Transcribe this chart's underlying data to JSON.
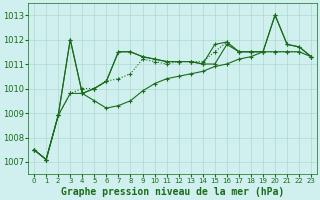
{
  "title": "Graphe pression niveau de la mer (hPa)",
  "background_color": "#cff0ee",
  "grid_color": "#b0d8cc",
  "line_color": "#1a6b1a",
  "series": [
    [
      1007.5,
      1007.1,
      1008.9,
      1012.0,
      1009.8,
      1010.0,
      1010.3,
      1011.5,
      1011.5,
      1011.3,
      1011.2,
      1011.1,
      1011.1,
      1011.1,
      1011.0,
      1011.0,
      1011.8,
      1011.5,
      1011.5,
      1011.5,
      1013.0,
      1011.8,
      1011.7,
      1011.3
    ],
    [
      1007.5,
      1007.1,
      1008.9,
      1012.0,
      1009.8,
      1010.0,
      1010.3,
      1011.5,
      1011.5,
      1011.3,
      1011.2,
      1011.1,
      1011.1,
      1011.1,
      1011.0,
      1011.8,
      1011.9,
      1011.5,
      1011.5,
      1011.5,
      1013.0,
      1011.8,
      1011.7,
      1011.3
    ],
    [
      1007.5,
      1007.1,
      1008.9,
      1009.8,
      1010.0,
      1010.0,
      1010.3,
      1010.4,
      1010.6,
      1011.2,
      1011.1,
      1011.0,
      1011.1,
      1011.1,
      1011.1,
      1011.5,
      1011.9,
      1011.5,
      1011.5,
      1011.5,
      1011.5,
      1011.5,
      1011.5,
      1011.3
    ],
    [
      1007.5,
      1007.1,
      1008.9,
      1009.8,
      1009.8,
      1009.5,
      1009.2,
      1009.3,
      1009.5,
      1009.9,
      1010.2,
      1010.4,
      1010.5,
      1010.6,
      1010.7,
      1010.9,
      1011.0,
      1011.2,
      1011.3,
      1011.5,
      1011.5,
      1011.5,
      1011.5,
      1011.3
    ]
  ],
  "xlim": [
    -0.5,
    23.5
  ],
  "ylim": [
    1006.5,
    1013.5
  ],
  "yticks": [
    1007,
    1008,
    1009,
    1010,
    1011,
    1012,
    1013
  ],
  "xticks": [
    0,
    1,
    2,
    3,
    4,
    5,
    6,
    7,
    8,
    9,
    10,
    11,
    12,
    13,
    14,
    15,
    16,
    17,
    18,
    19,
    20,
    21,
    22,
    23
  ],
  "marker": "+",
  "marker_size": 3,
  "line_width": 0.8,
  "title_fontsize": 7,
  "tick_fontsize": 5,
  "figsize": [
    3.2,
    2.0
  ],
  "dpi": 100
}
